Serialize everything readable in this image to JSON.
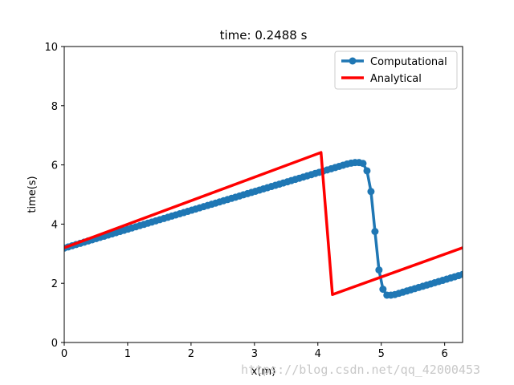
{
  "chart_data": {
    "type": "line",
    "title": "time: 0.2488 s",
    "xlabel": "x(m)",
    "ylabel": "time(s)",
    "xlim": [
      0,
      6.283
    ],
    "ylim": [
      0,
      10
    ],
    "xticks": [
      "0",
      "1",
      "2",
      "3",
      "4",
      "5",
      "6"
    ],
    "yticks": [
      "0",
      "2",
      "4",
      "6",
      "8",
      "10"
    ],
    "grid": false,
    "legend_position": "top-right",
    "series": [
      {
        "name": "Computational",
        "color": "#1f77b4",
        "marker": "circle",
        "x": [
          0.0,
          0.063,
          0.126,
          0.188,
          0.251,
          0.314,
          0.377,
          0.44,
          0.503,
          0.565,
          0.628,
          0.691,
          0.754,
          0.817,
          0.88,
          0.942,
          1.005,
          1.068,
          1.131,
          1.194,
          1.257,
          1.319,
          1.382,
          1.445,
          1.508,
          1.571,
          1.634,
          1.696,
          1.759,
          1.822,
          1.885,
          1.948,
          2.011,
          2.073,
          2.136,
          2.199,
          2.262,
          2.325,
          2.388,
          2.45,
          2.513,
          2.576,
          2.639,
          2.702,
          2.765,
          2.827,
          2.89,
          2.953,
          3.016,
          3.079,
          3.142,
          3.204,
          3.267,
          3.33,
          3.393,
          3.456,
          3.519,
          3.581,
          3.644,
          3.707,
          3.77,
          3.833,
          3.896,
          3.958,
          4.021,
          4.084,
          4.147,
          4.21,
          4.273,
          4.335,
          4.398,
          4.461,
          4.524,
          4.587,
          4.65,
          4.712,
          4.775,
          4.838,
          4.901,
          4.964,
          5.027,
          5.089,
          5.152,
          5.215,
          5.278,
          5.341,
          5.404,
          5.466,
          5.529,
          5.592,
          5.655,
          5.718,
          5.781,
          5.843,
          5.906,
          5.969,
          6.032,
          6.095,
          6.158,
          6.22,
          6.283
        ],
        "y": [
          3.19,
          3.23,
          3.27,
          3.31,
          3.35,
          3.39,
          3.43,
          3.47,
          3.51,
          3.55,
          3.59,
          3.63,
          3.67,
          3.71,
          3.75,
          3.79,
          3.83,
          3.87,
          3.91,
          3.95,
          3.99,
          4.03,
          4.07,
          4.11,
          4.15,
          4.19,
          4.23,
          4.27,
          4.31,
          4.35,
          4.39,
          4.43,
          4.47,
          4.51,
          4.55,
          4.59,
          4.63,
          4.67,
          4.71,
          4.75,
          4.79,
          4.83,
          4.87,
          4.91,
          4.95,
          4.99,
          5.03,
          5.07,
          5.11,
          5.15,
          5.19,
          5.23,
          5.27,
          5.31,
          5.35,
          5.39,
          5.43,
          5.47,
          5.51,
          5.55,
          5.59,
          5.63,
          5.67,
          5.71,
          5.75,
          5.79,
          5.83,
          5.87,
          5.91,
          5.95,
          5.99,
          6.03,
          6.06,
          6.08,
          6.08,
          6.05,
          5.8,
          5.1,
          3.75,
          2.45,
          1.8,
          1.6,
          1.6,
          1.62,
          1.66,
          1.7,
          1.74,
          1.78,
          1.82,
          1.86,
          1.9,
          1.94,
          1.98,
          2.02,
          2.06,
          2.1,
          2.14,
          2.18,
          2.22,
          2.26,
          2.3
        ]
      },
      {
        "name": "Analytical",
        "color": "#ff0000",
        "x": [
          0.0,
          4.05,
          4.23,
          6.283
        ],
        "y": [
          3.2,
          6.42,
          1.62,
          3.2
        ]
      }
    ]
  },
  "watermark": "https://blog.csdn.net/qq_42000453"
}
